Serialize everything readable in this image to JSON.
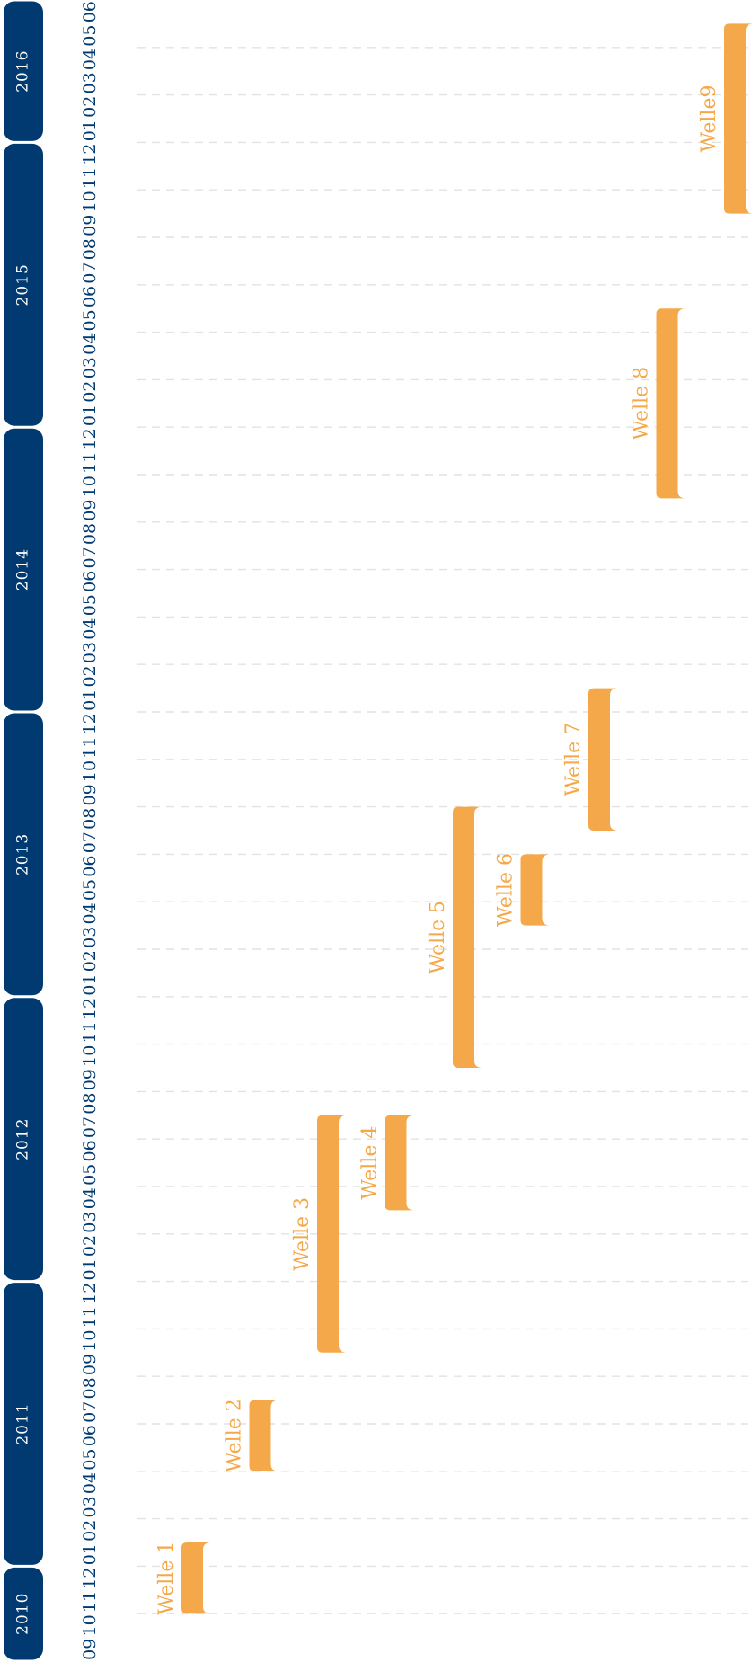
{
  "timeline": {
    "years": [
      "2010",
      "2011",
      "2012",
      "2013",
      "2014",
      "2015",
      "2016"
    ],
    "months": [
      "09",
      "10",
      "11",
      "12",
      "01",
      "02",
      "03",
      "04",
      "05",
      "06",
      "07",
      "08",
      "09",
      "10",
      "11",
      "12",
      "01",
      "02",
      "03",
      "04",
      "05",
      "06",
      "07",
      "08",
      "09",
      "10",
      "11",
      "12",
      "01",
      "02",
      "03",
      "04",
      "05",
      "06",
      "07",
      "08",
      "09",
      "10",
      "11",
      "12",
      "01",
      "02",
      "03",
      "04",
      "05",
      "06",
      "07",
      "08",
      "09",
      "10",
      "11",
      "12",
      "01",
      "02",
      "03",
      "04",
      "05",
      "06",
      "07",
      "08",
      "09",
      "10",
      "11",
      "12",
      "01",
      "02",
      "03",
      "04",
      "05",
      "06"
    ]
  },
  "waves": [
    {
      "label": "Welle 1",
      "start": "2010-11",
      "end": "2011-01"
    },
    {
      "label": "Welle 2",
      "start": "2011-05",
      "end": "2011-07"
    },
    {
      "label": "Welle 3",
      "start": "2011-10",
      "end": "2012-07"
    },
    {
      "label": "Welle 4",
      "start": "2012-04",
      "end": "2012-07"
    },
    {
      "label": "Welle 5",
      "start": "2012-10",
      "end": "2013-08"
    },
    {
      "label": "Welle 6",
      "start": "2013-04",
      "end": "2013-06"
    },
    {
      "label": "Welle 7",
      "start": "2013-08",
      "end": "2014-01"
    },
    {
      "label": "Welle 8",
      "start": "2014-10",
      "end": "2015-05"
    },
    {
      "label": "Welle9",
      "start": "2015-10",
      "end": "2016-05"
    }
  ]
}
